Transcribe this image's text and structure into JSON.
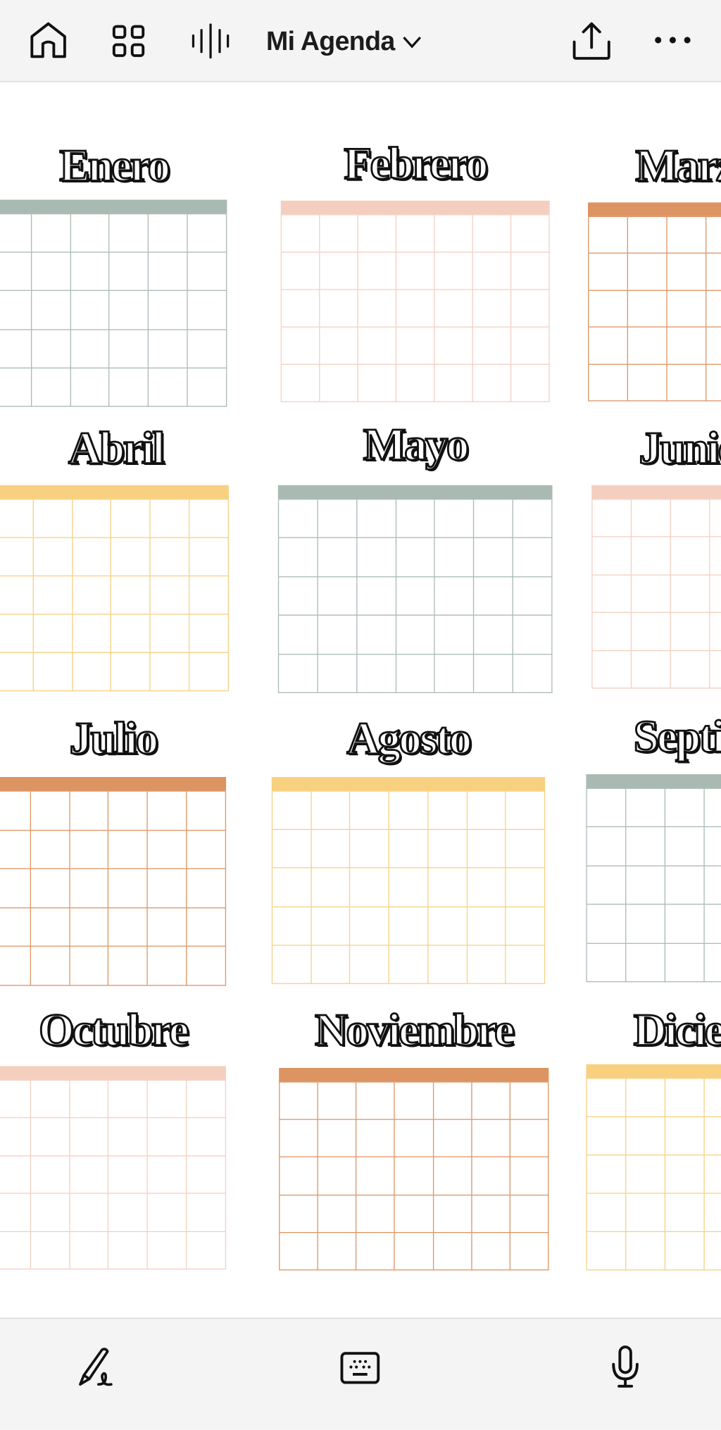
{
  "header": {
    "title": "Mi Agenda",
    "icons": [
      "home-icon",
      "grid-icon",
      "audio-waveform-icon",
      "chevron-down-icon",
      "share-icon",
      "more-icon"
    ]
  },
  "colors": {
    "sage": "#a8bab1",
    "peach": "#f4cfc0",
    "orange": "#dc9462",
    "yellow": "#f7d080"
  },
  "months": [
    {
      "name": "Enero",
      "color": "sage"
    },
    {
      "name": "Febrero",
      "color": "peach"
    },
    {
      "name": "Marzo",
      "color": "orange"
    },
    {
      "name": "Abril",
      "color": "yellow"
    },
    {
      "name": "Mayo",
      "color": "sage"
    },
    {
      "name": "Junio",
      "color": "peach"
    },
    {
      "name": "Julio",
      "color": "orange"
    },
    {
      "name": "Agosto",
      "color": "yellow"
    },
    {
      "name": "Septiembre",
      "color": "sage"
    },
    {
      "name": "Octubre",
      "color": "peach"
    },
    {
      "name": "Noviembre",
      "color": "orange"
    },
    {
      "name": "Diciembre",
      "color": "yellow"
    }
  ],
  "bottombar": {
    "icons": [
      "pen-signature-icon",
      "keyboard-icon",
      "microphone-icon"
    ]
  }
}
